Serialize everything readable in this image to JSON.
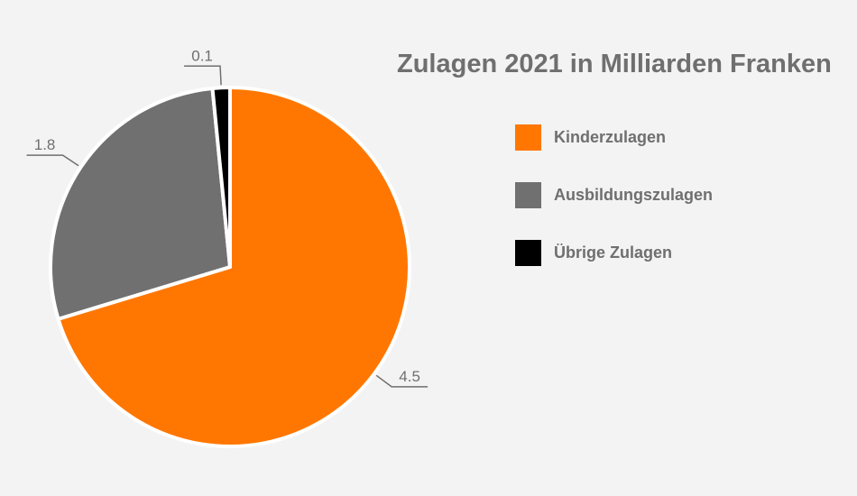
{
  "chart_data": {
    "type": "pie",
    "title": "Zulagen 2021 in Milliarden Franken",
    "categories": [
      "Kinderzulagen",
      "Ausbildungszulagen",
      "Übrige Zulagen"
    ],
    "values": [
      4.5,
      1.8,
      0.1
    ],
    "data_labels": [
      "4.5",
      "1.8",
      "0.1"
    ],
    "colors": [
      "#ff7700",
      "#707070",
      "#000000"
    ],
    "start_angle": "12 o'clock",
    "direction": "clockwise",
    "legend_position": "right"
  }
}
